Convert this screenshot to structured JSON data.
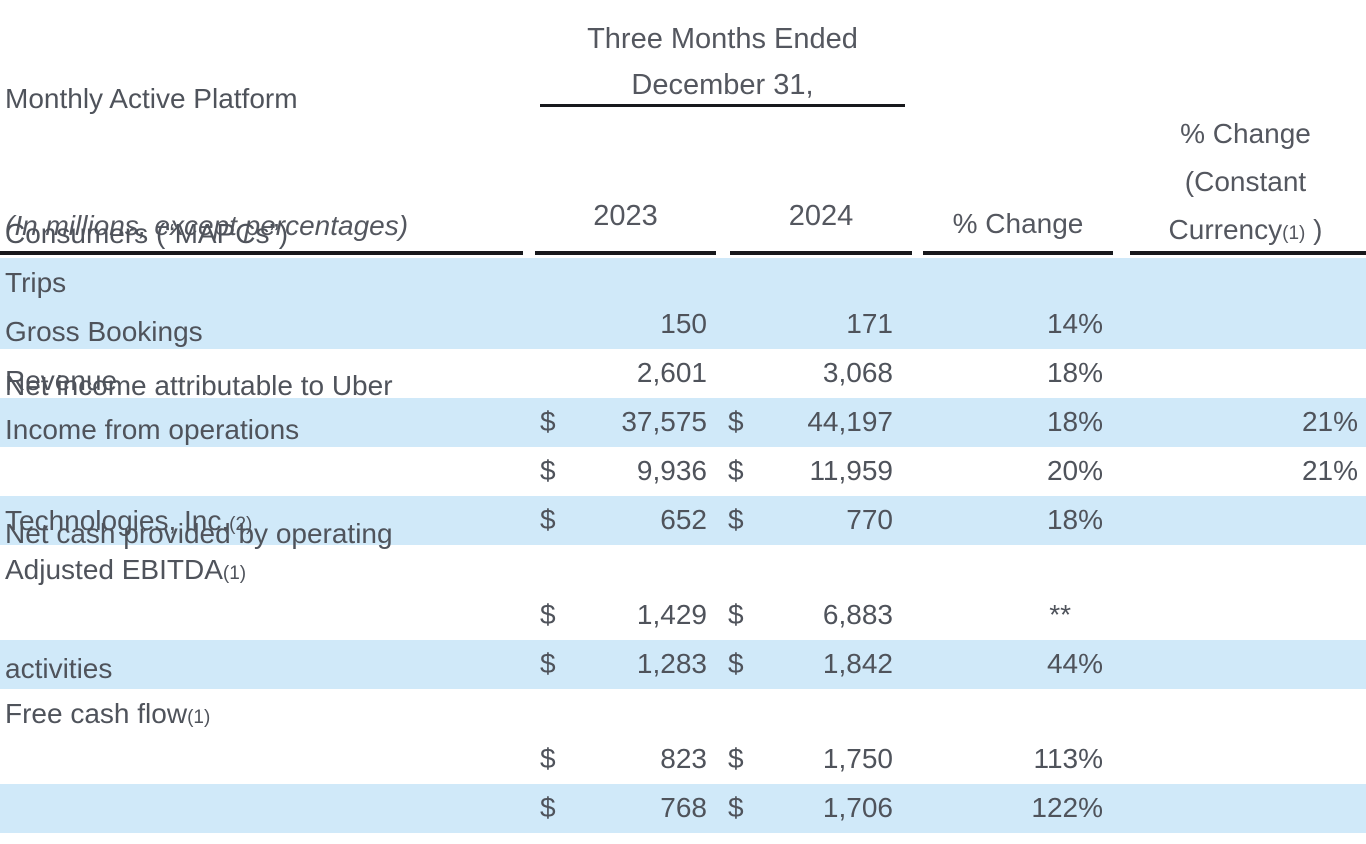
{
  "colors": {
    "row_highlight": "#d0e9f9",
    "text": "#4f535b",
    "rule": "#17181c"
  },
  "table": {
    "period_header": {
      "line1": "Three Months Ended",
      "line2": "December 31,"
    },
    "caption": "(In millions, except percentages)",
    "columns": {
      "year1": "2023",
      "year2": "2024",
      "pct_change": "% Change",
      "cc_line1": "% Change",
      "cc_line2": "(Constant",
      "cc_line3_text": "Currency",
      "cc_ref": "(1)",
      "cc_close": " )"
    },
    "rows": [
      {
        "label_lines": [
          "Monthly Active Platform",
          "Consumers (“MAPCs”)"
        ],
        "ref": "",
        "d1": "",
        "v1": "150",
        "d2": "",
        "v2": "171",
        "pct": "14%",
        "cc": ""
      },
      {
        "label_lines": [
          "Trips"
        ],
        "ref": "",
        "d1": "",
        "v1": "2,601",
        "d2": "",
        "v2": "3,068",
        "pct": "18%",
        "cc": ""
      },
      {
        "label_lines": [
          "Gross Bookings"
        ],
        "ref": "",
        "d1": "$",
        "v1": "37,575",
        "d2": "$",
        "v2": "44,197",
        "pct": "18%",
        "cc": "21%"
      },
      {
        "label_lines": [
          "Revenue"
        ],
        "ref": "",
        "d1": "$",
        "v1": "9,936",
        "d2": "$",
        "v2": "11,959",
        "pct": "20%",
        "cc": "21%"
      },
      {
        "label_lines": [
          "Income from operations"
        ],
        "ref": "",
        "d1": "$",
        "v1": "652",
        "d2": "$",
        "v2": "770",
        "pct": "18%",
        "cc": ""
      },
      {
        "label_lines": [
          "Net income attributable to Uber",
          "Technologies, Inc."
        ],
        "ref": "(2)",
        "d1": "$",
        "v1": "1,429",
        "d2": "$",
        "v2": "6,883",
        "pct": "**",
        "cc": ""
      },
      {
        "label_lines": [
          "Adjusted EBITDA"
        ],
        "ref": "(1)",
        "d1": "$",
        "v1": "1,283",
        "d2": "$",
        "v2": "1,842",
        "pct": "44%",
        "cc": ""
      },
      {
        "label_lines": [
          "Net cash provided by operating",
          "activities"
        ],
        "ref": "",
        "d1": "$",
        "v1": "823",
        "d2": "$",
        "v2": "1,750",
        "pct": "113%",
        "cc": ""
      },
      {
        "label_lines": [
          "Free cash flow"
        ],
        "ref": "(1)",
        "d1": "$",
        "v1": "768",
        "d2": "$",
        "v2": "1,706",
        "pct": "122%",
        "cc": ""
      }
    ]
  }
}
